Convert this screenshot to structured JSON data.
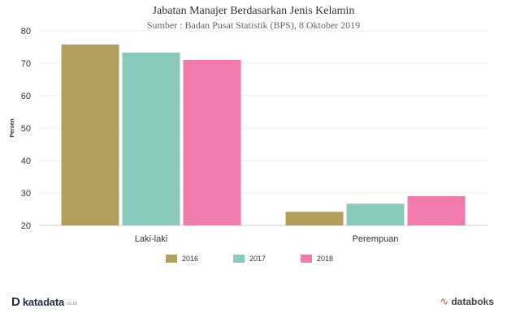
{
  "chart_data": {
    "type": "bar",
    "title": "Jabatan Manajer Berdasarkan Jenis Kelamin",
    "subtitle": "Sumber : Badan Pusat Statistik (BPS), 8 Oktober 2019",
    "xlabel": "",
    "ylabel": "Persen",
    "ylim": [
      20,
      80
    ],
    "yticks": [
      20,
      30,
      40,
      50,
      60,
      70,
      80
    ],
    "categories": [
      "Laki-laki",
      "Perempuan"
    ],
    "series": [
      {
        "name": "2016",
        "color": "#b0a05c",
        "values": [
          75.8,
          24.2
        ]
      },
      {
        "name": "2017",
        "color": "#88cbbe",
        "values": [
          73.3,
          26.7
        ]
      },
      {
        "name": "2018",
        "color": "#f27aae",
        "values": [
          71.0,
          29.0
        ]
      }
    ],
    "grid": true,
    "legend": "bottom"
  },
  "branding": {
    "left_mark": "D",
    "left_name": "katadata",
    "left_suffix": "co.id",
    "right_mark": "∿",
    "right_name": "databoks"
  }
}
